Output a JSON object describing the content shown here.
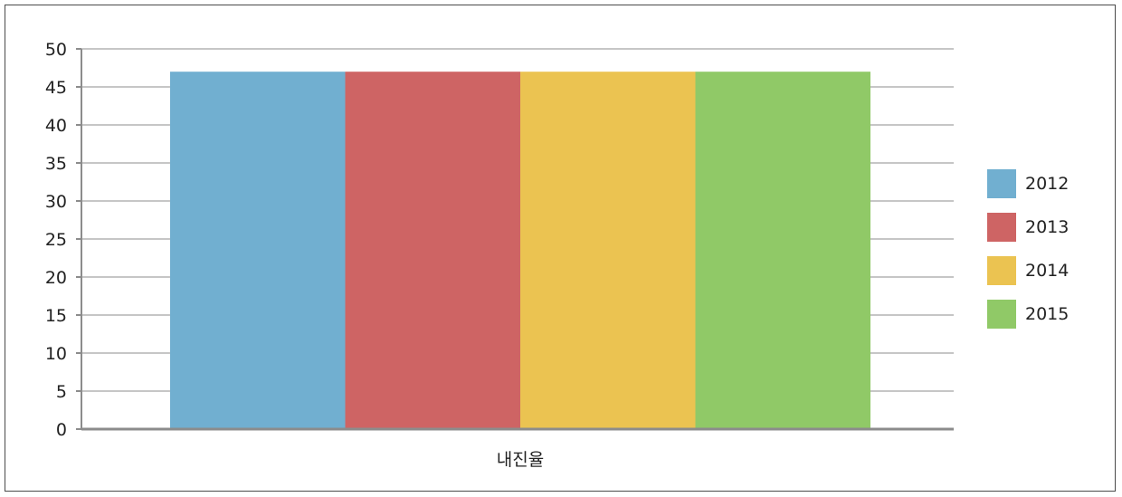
{
  "chart_data": {
    "type": "bar",
    "categories": [
      "내진율"
    ],
    "series": [
      {
        "name": "2012",
        "values": [
          47
        ],
        "color": "#71AFD0"
      },
      {
        "name": "2013",
        "values": [
          47
        ],
        "color": "#CE6464"
      },
      {
        "name": "2014",
        "values": [
          47
        ],
        "color": "#EBC351"
      },
      {
        "name": "2015",
        "values": [
          47
        ],
        "color": "#90C967"
      }
    ],
    "yticks": [
      "0",
      "5",
      "10",
      "15",
      "20",
      "25",
      "30",
      "35",
      "40",
      "45",
      "50"
    ],
    "ylim": [
      0,
      50
    ],
    "grid": true,
    "legend_position": "right",
    "title": "",
    "xlabel": "",
    "ylabel": ""
  }
}
